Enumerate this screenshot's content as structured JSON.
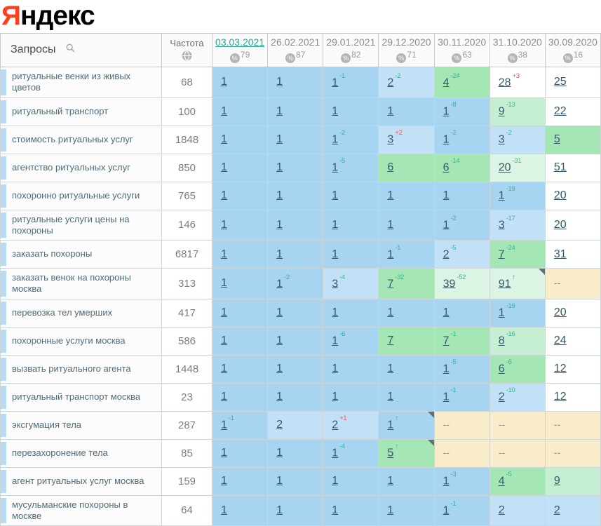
{
  "logo": {
    "first_letter": "Я",
    "rest": "ндекс"
  },
  "header": {
    "queries_label": "Запросы",
    "frequency_label": "Частота",
    "percent_symbol": "%",
    "dates": [
      {
        "label": "03.03.2021",
        "coverage": "79",
        "active": true
      },
      {
        "label": "26.02.2021",
        "coverage": "87",
        "active": false
      },
      {
        "label": "29.01.2021",
        "coverage": "82",
        "active": false
      },
      {
        "label": "29.12.2020",
        "coverage": "71",
        "active": false
      },
      {
        "label": "30.11.2020",
        "coverage": "63",
        "active": false
      },
      {
        "label": "31.10.2020",
        "coverage": "38",
        "active": false
      },
      {
        "label": "30.09.2020",
        "coverage": "16",
        "active": false
      }
    ]
  },
  "colors": {
    "accent_date": "#2aa890",
    "delta_up": "#35b493",
    "delta_down": "#e05a50",
    "cell_blue": "#a7d4f0",
    "cell_blue_light": "#c3e1f6",
    "cell_green": "#a5e6b5",
    "cell_mint": "#c5eed3",
    "cell_pale_mint": "#dcf4e3",
    "cell_beige": "#f8ecca",
    "logo_red": "#fc3f1d"
  },
  "rows": [
    {
      "query": "ритуальные венки из живых цветов",
      "frequency": "68",
      "cells": [
        {
          "value": "1",
          "bg": "blue"
        },
        {
          "value": "1",
          "bg": "blue"
        },
        {
          "value": "1",
          "delta": "-1",
          "trend": "up",
          "bg": "blue"
        },
        {
          "value": "2",
          "delta": "-2",
          "trend": "up",
          "bg": "blue2"
        },
        {
          "value": "4",
          "delta": "-24",
          "trend": "up",
          "bg": "green"
        },
        {
          "value": "28",
          "delta": "+3",
          "trend": "down",
          "bg": "white"
        },
        {
          "value": "25",
          "bg": "white"
        }
      ]
    },
    {
      "query": "ритуальный транспорт",
      "frequency": "100",
      "cells": [
        {
          "value": "1",
          "bg": "blue"
        },
        {
          "value": "1",
          "bg": "blue"
        },
        {
          "value": "1",
          "bg": "blue"
        },
        {
          "value": "1",
          "bg": "blue"
        },
        {
          "value": "1",
          "delta": "-8",
          "trend": "up",
          "bg": "blue"
        },
        {
          "value": "9",
          "delta": "-13",
          "trend": "up",
          "bg": "mint"
        },
        {
          "value": "22",
          "bg": "white"
        }
      ]
    },
    {
      "query": "стоимость ритуальных услуг",
      "frequency": "1848",
      "cells": [
        {
          "value": "1",
          "bg": "blue"
        },
        {
          "value": "1",
          "bg": "blue"
        },
        {
          "value": "1",
          "delta": "-2",
          "trend": "up",
          "bg": "blue"
        },
        {
          "value": "3",
          "delta": "+2",
          "trend": "down",
          "bg": "blue2"
        },
        {
          "value": "1",
          "delta": "-2",
          "trend": "up",
          "bg": "blue"
        },
        {
          "value": "3",
          "delta": "-2",
          "trend": "up",
          "bg": "blue2"
        },
        {
          "value": "5",
          "bg": "green"
        }
      ]
    },
    {
      "query": "агентство ритуальных услуг",
      "frequency": "850",
      "cells": [
        {
          "value": "1",
          "bg": "blue"
        },
        {
          "value": "1",
          "bg": "blue"
        },
        {
          "value": "1",
          "delta": "-5",
          "trend": "up",
          "bg": "blue"
        },
        {
          "value": "6",
          "bg": "green"
        },
        {
          "value": "6",
          "delta": "-14",
          "trend": "up",
          "bg": "green"
        },
        {
          "value": "20",
          "delta": "-31",
          "trend": "up",
          "bg": "palemint"
        },
        {
          "value": "51",
          "bg": "white"
        }
      ]
    },
    {
      "query": "похоронно ритуальные услуги",
      "frequency": "765",
      "cells": [
        {
          "value": "1",
          "bg": "blue"
        },
        {
          "value": "1",
          "bg": "blue"
        },
        {
          "value": "1",
          "bg": "blue"
        },
        {
          "value": "1",
          "bg": "blue"
        },
        {
          "value": "1",
          "bg": "blue"
        },
        {
          "value": "1",
          "delta": "-19",
          "trend": "up",
          "bg": "blue"
        },
        {
          "value": "20",
          "bg": "white"
        }
      ]
    },
    {
      "query": "ритуальные услуги цены на похороны",
      "frequency": "146",
      "cells": [
        {
          "value": "1",
          "bg": "blue"
        },
        {
          "value": "1",
          "bg": "blue"
        },
        {
          "value": "1",
          "bg": "blue"
        },
        {
          "value": "1",
          "bg": "blue"
        },
        {
          "value": "1",
          "delta": "-2",
          "trend": "up",
          "bg": "blue"
        },
        {
          "value": "3",
          "delta": "-17",
          "trend": "up",
          "bg": "blue2"
        },
        {
          "value": "20",
          "bg": "white"
        }
      ]
    },
    {
      "query": "заказать похороны",
      "frequency": "6817",
      "cells": [
        {
          "value": "1",
          "bg": "blue"
        },
        {
          "value": "1",
          "bg": "blue"
        },
        {
          "value": "1",
          "bg": "blue"
        },
        {
          "value": "1",
          "delta": "-1",
          "trend": "up",
          "bg": "blue"
        },
        {
          "value": "2",
          "delta": "-5",
          "trend": "up",
          "bg": "blue2"
        },
        {
          "value": "7",
          "delta": "-24",
          "trend": "up",
          "bg": "green"
        },
        {
          "value": "31",
          "bg": "white"
        }
      ]
    },
    {
      "query": "заказать венок на похороны москва",
      "frequency": "313",
      "cells": [
        {
          "value": "1",
          "bg": "blue"
        },
        {
          "value": "1",
          "delta": "-2",
          "trend": "up",
          "bg": "blue"
        },
        {
          "value": "3",
          "delta": "-4",
          "trend": "up",
          "bg": "blue2"
        },
        {
          "value": "7",
          "delta": "-32",
          "trend": "up",
          "bg": "green"
        },
        {
          "value": "39",
          "delta": "-52",
          "trend": "up",
          "bg": "palemint"
        },
        {
          "value": "91",
          "delta": "↑",
          "trend": "up",
          "bg": "palemint",
          "corner": true
        },
        {
          "value": "--",
          "bg": "beige"
        }
      ]
    },
    {
      "query": "перевозка тел умерших",
      "frequency": "417",
      "cells": [
        {
          "value": "1",
          "bg": "blue"
        },
        {
          "value": "1",
          "bg": "blue"
        },
        {
          "value": "1",
          "bg": "blue"
        },
        {
          "value": "1",
          "bg": "blue"
        },
        {
          "value": "1",
          "bg": "blue"
        },
        {
          "value": "1",
          "delta": "-19",
          "trend": "up",
          "bg": "blue"
        },
        {
          "value": "20",
          "bg": "white"
        }
      ]
    },
    {
      "query": "похоронные услуги москва",
      "frequency": "586",
      "cells": [
        {
          "value": "1",
          "bg": "blue"
        },
        {
          "value": "1",
          "bg": "blue"
        },
        {
          "value": "1",
          "delta": "-6",
          "trend": "up",
          "bg": "blue"
        },
        {
          "value": "7",
          "bg": "green"
        },
        {
          "value": "7",
          "delta": "-1",
          "trend": "up",
          "bg": "green"
        },
        {
          "value": "8",
          "delta": "-16",
          "trend": "up",
          "bg": "mint"
        },
        {
          "value": "24",
          "bg": "white"
        }
      ]
    },
    {
      "query": "вызвать ритуального агента",
      "frequency": "1448",
      "cells": [
        {
          "value": "1",
          "bg": "blue"
        },
        {
          "value": "1",
          "bg": "blue"
        },
        {
          "value": "1",
          "bg": "blue"
        },
        {
          "value": "1",
          "bg": "blue"
        },
        {
          "value": "1",
          "delta": "-5",
          "trend": "up",
          "bg": "blue"
        },
        {
          "value": "6",
          "delta": "-6",
          "trend": "up",
          "bg": "green"
        },
        {
          "value": "12",
          "bg": "white"
        }
      ]
    },
    {
      "query": "ритуальный транспорт москва",
      "frequency": "23",
      "cells": [
        {
          "value": "1",
          "bg": "blue"
        },
        {
          "value": "1",
          "bg": "blue"
        },
        {
          "value": "1",
          "bg": "blue"
        },
        {
          "value": "1",
          "bg": "blue"
        },
        {
          "value": "1",
          "delta": "-1",
          "trend": "up",
          "bg": "blue"
        },
        {
          "value": "2",
          "delta": "-10",
          "trend": "up",
          "bg": "blue2"
        },
        {
          "value": "12",
          "bg": "white"
        }
      ]
    },
    {
      "query": "эксгумация тела",
      "frequency": "287",
      "cells": [
        {
          "value": "1",
          "delta": "-1",
          "trend": "up",
          "bg": "blue"
        },
        {
          "value": "2",
          "bg": "blue2"
        },
        {
          "value": "2",
          "delta": "+1",
          "trend": "down",
          "bg": "blue2"
        },
        {
          "value": "1",
          "delta": "↑",
          "trend": "up",
          "bg": "blue",
          "corner": true
        },
        {
          "value": "--",
          "bg": "beige"
        },
        {
          "value": "--",
          "bg": "beige"
        },
        {
          "value": "--",
          "bg": "beige"
        }
      ]
    },
    {
      "query": "перезахоронение тела",
      "frequency": "85",
      "cells": [
        {
          "value": "1",
          "bg": "blue"
        },
        {
          "value": "1",
          "bg": "blue"
        },
        {
          "value": "1",
          "delta": "-4",
          "trend": "up",
          "bg": "blue"
        },
        {
          "value": "5",
          "delta": "↑",
          "trend": "up",
          "bg": "green",
          "corner": true
        },
        {
          "value": "--",
          "bg": "beige"
        },
        {
          "value": "--",
          "bg": "beige"
        },
        {
          "value": "--",
          "bg": "beige"
        }
      ]
    },
    {
      "query": "агент ритуальных услуг москва",
      "frequency": "159",
      "cells": [
        {
          "value": "1",
          "bg": "blue"
        },
        {
          "value": "1",
          "bg": "blue"
        },
        {
          "value": "1",
          "bg": "blue"
        },
        {
          "value": "1",
          "bg": "blue"
        },
        {
          "value": "1",
          "delta": "-3",
          "trend": "up",
          "bg": "blue"
        },
        {
          "value": "4",
          "delta": "-5",
          "trend": "up",
          "bg": "green"
        },
        {
          "value": "9",
          "bg": "mint"
        }
      ]
    },
    {
      "query": "мусульманские похороны в москве",
      "frequency": "64",
      "cells": [
        {
          "value": "1",
          "bg": "blue"
        },
        {
          "value": "1",
          "bg": "blue"
        },
        {
          "value": "1",
          "bg": "blue"
        },
        {
          "value": "1",
          "bg": "blue"
        },
        {
          "value": "1",
          "delta": "-1",
          "trend": "up",
          "bg": "blue"
        },
        {
          "value": "2",
          "bg": "blue2"
        },
        {
          "value": "2",
          "bg": "blue2"
        }
      ]
    }
  ]
}
